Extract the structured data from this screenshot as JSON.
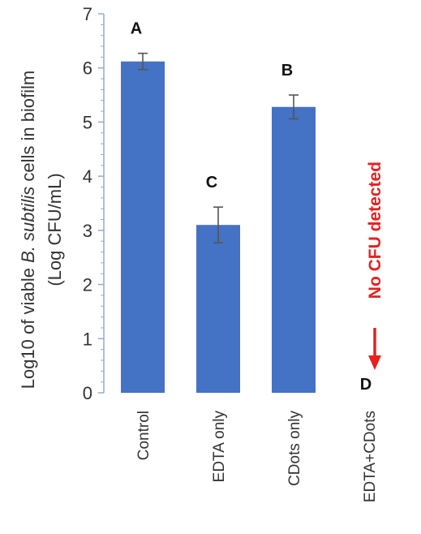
{
  "chart_data": {
    "type": "bar",
    "title": "",
    "ylabel": {
      "line1_prefix": "Log10 of viable ",
      "line1_italic": "B. subtilis",
      "line1_suffix": " cells in biofilm",
      "line2": "(Log CFU/mL)"
    },
    "xlabel": "",
    "ylim": [
      0,
      7
    ],
    "yticks": [
      "0",
      "1",
      "2",
      "3",
      "4",
      "5",
      "6",
      "7"
    ],
    "categories": [
      "Control",
      "EDTA only",
      "CDots only",
      "EDTA+CDots"
    ],
    "values": [
      6.12,
      3.1,
      5.28,
      0
    ],
    "errors": [
      0.15,
      0.33,
      0.22,
      0
    ],
    "significance_letters": [
      "A",
      "C",
      "B",
      "D"
    ],
    "annotation": {
      "text": "No CFU detected",
      "category_index": 3
    },
    "bar_color": "#4472c4",
    "annotation_color": "#e8201e",
    "axis_color": "#8faadc"
  }
}
